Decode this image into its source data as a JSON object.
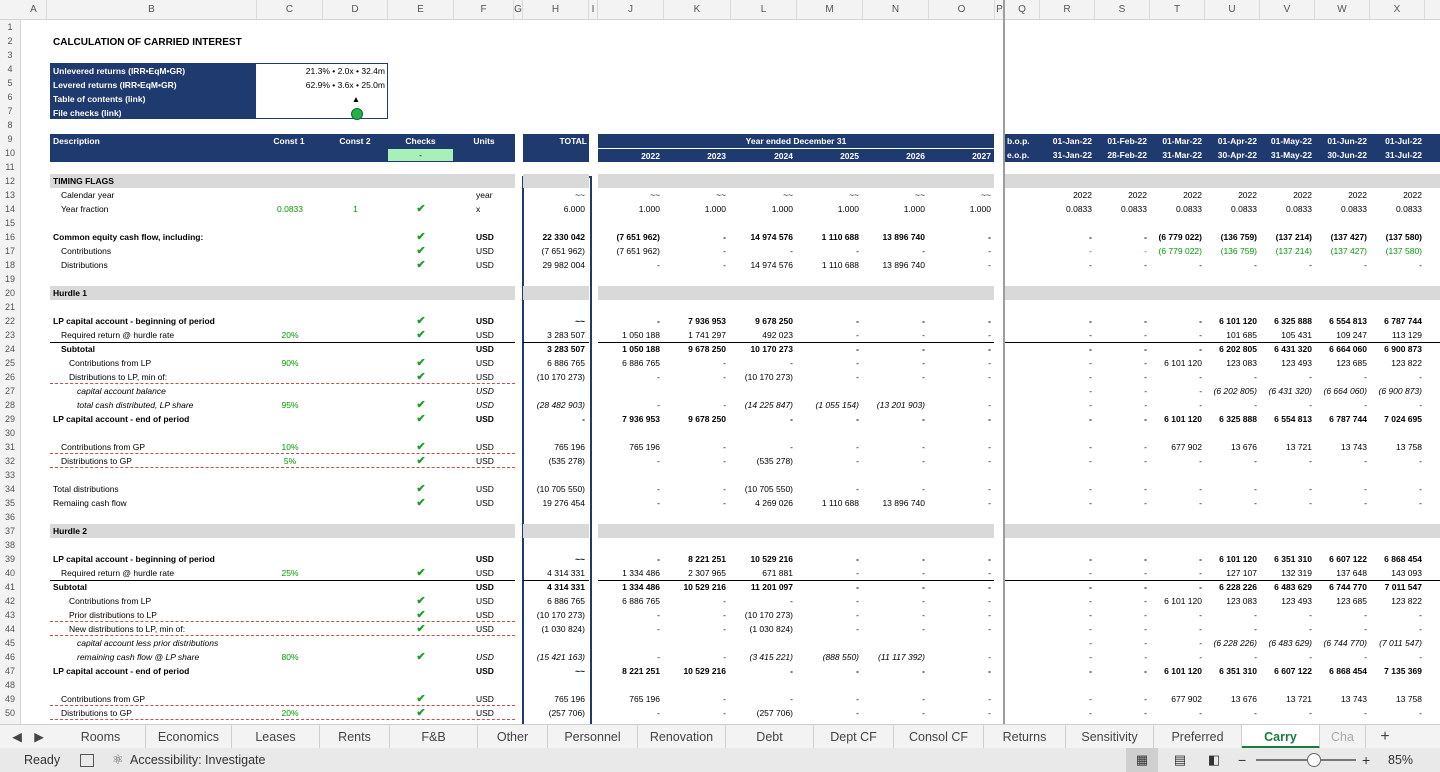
{
  "columns": [
    "A",
    "B",
    "C",
    "D",
    "E",
    "F",
    "G",
    "H",
    "I",
    "J",
    "K",
    "L",
    "M",
    "N",
    "O",
    "P",
    "Q",
    "R",
    "S",
    "T",
    "U",
    "V",
    "W",
    "X"
  ],
  "rows": [
    "1",
    "2",
    "3",
    "4",
    "5",
    "6",
    "7",
    "8",
    "9",
    "10",
    "11",
    "12",
    "13",
    "14",
    "15",
    "16",
    "17",
    "18",
    "19",
    "20",
    "21",
    "22",
    "23",
    "24",
    "25",
    "26",
    "27",
    "28",
    "29",
    "30",
    "31",
    "32",
    "33",
    "34",
    "35",
    "36",
    "37",
    "38",
    "39",
    "40",
    "41",
    "42",
    "43",
    "44",
    "45",
    "46",
    "47",
    "48",
    "49",
    "50"
  ],
  "title": "CALCULATION OF CARRIED INTEREST",
  "infobox": {
    "r1": "Unlevered returns (IRR•EqM•GR)",
    "v1": "21.3% • 2.0x • 32.4m",
    "r2": "Levered returns (IRR•EqM•GR)",
    "v2": "62.9% • 3.6x • 25.0m",
    "r3": "Table of contents (link)",
    "v3": "▲",
    "r4": "File checks (link)"
  },
  "header": {
    "description": "Description",
    "const1": "Const 1",
    "const2": "Const 2",
    "checks": "Checks",
    "checks_val": "-",
    "units": "Units",
    "total": "TOTAL",
    "year_ended": "Year ended December 31",
    "years": [
      "2022",
      "2023",
      "2024",
      "2025",
      "2026",
      "2027"
    ],
    "bop": "b.o.p.",
    "eop": "e.o.p.",
    "bop_dates": [
      "01-Jan-22",
      "01-Feb-22",
      "01-Mar-22",
      "01-Apr-22",
      "01-May-22",
      "01-Jun-22",
      "01-Jul-22"
    ],
    "eop_dates": [
      "31-Jan-22",
      "28-Feb-22",
      "31-Mar-22",
      "30-Apr-22",
      "31-May-22",
      "30-Jun-22",
      "31-Jul-22"
    ]
  },
  "sheet_rows": [
    {
      "r": 12,
      "grey": true,
      "label": "TIMING FLAGS",
      "bold": true
    },
    {
      "r": 13,
      "label": "Calendar year",
      "indent": 1,
      "unit": "year",
      "total": "~~",
      "ann": [
        "~~",
        "~~",
        "~~",
        "~~",
        "~~",
        "~~"
      ],
      "mon": [
        "2022",
        "2022",
        "2022",
        "2022",
        "2022",
        "2022",
        "2022"
      ]
    },
    {
      "r": 14,
      "label": "Year fraction",
      "indent": 1,
      "c1": "0.0833",
      "c2": "1",
      "chk": true,
      "unit": "x",
      "total": "6.000",
      "ann": [
        "1.000",
        "1.000",
        "1.000",
        "1.000",
        "1.000",
        "1.000"
      ],
      "mon": [
        "0.0833",
        "0.0833",
        "0.0833",
        "0.0833",
        "0.0833",
        "0.0833",
        "0.0833"
      ]
    },
    {
      "r": 16,
      "label": "Common equity cash flow, including:",
      "bold": true,
      "chk": true,
      "unit": "USD",
      "total": "22 330 042",
      "ann": [
        "(7 651 962)",
        "-",
        "14 974 576",
        "1 110 688",
        "13 896 740",
        "-"
      ],
      "mon": [
        "-",
        "-",
        "(6 779 022)",
        "(136 759)",
        "(137 214)",
        "(137 427)",
        "(137 580)"
      ]
    },
    {
      "r": 17,
      "label": "Contributions",
      "indent": 1,
      "chk": true,
      "unit": "USD",
      "total": "(7 651 962)",
      "ann": [
        "(7 651 962)",
        "-",
        "-",
        "-",
        "-",
        "-"
      ],
      "mon": [
        "-",
        "-",
        "(6 779 022)",
        "(136 759)",
        "(137 214)",
        "(137 427)",
        "(137 580)"
      ],
      "green_mon": true
    },
    {
      "r": 18,
      "label": "Distributions",
      "indent": 1,
      "chk": true,
      "unit": "USD",
      "total": "29 982 004",
      "ann": [
        "-",
        "-",
        "14 974 576",
        "1 110 688",
        "13 896 740",
        "-"
      ],
      "mon": [
        "-",
        "-",
        "-",
        "-",
        "-",
        "-",
        "-"
      ]
    },
    {
      "r": 20,
      "grey": true,
      "label": "Hurdle 1",
      "bold": true
    },
    {
      "r": 22,
      "label": "LP capital account - beginning of period",
      "bold": true,
      "chk": true,
      "unit": "USD",
      "total": "~~",
      "ann": [
        "-",
        "7 936 953",
        "9 678 250",
        "-",
        "-",
        "-"
      ],
      "mon": [
        "-",
        "-",
        "-",
        "6 101 120",
        "6 325 888",
        "6 554 813",
        "6 787 744"
      ]
    },
    {
      "r": 23,
      "label": "Required return @ hurdle rate",
      "indent": 1,
      "c1": "20%",
      "chk": true,
      "unit": "USD",
      "total": "3 283 507",
      "ann": [
        "1 050 188",
        "1 741 297",
        "492 023",
        "-",
        "-",
        "-"
      ],
      "mon": [
        "-",
        "-",
        "-",
        "101 685",
        "105 431",
        "109 247",
        "113 129"
      ]
    },
    {
      "r": 24,
      "label": "Subtotal",
      "bold": true,
      "indent": 1,
      "unit": "USD",
      "total": "3 283 507",
      "ann": [
        "1 050 188",
        "9 678 250",
        "10 170 273",
        "-",
        "-",
        "-"
      ],
      "mon": [
        "-",
        "-",
        "-",
        "6 202 805",
        "6 431 320",
        "6 664 060",
        "6 900 873"
      ]
    },
    {
      "r": 25,
      "label": "Contributions from LP",
      "indent": 2,
      "c1": "90%",
      "chk": true,
      "unit": "USD",
      "total": "6 886 765",
      "ann": [
        "6 886 765",
        "-",
        "-",
        "-",
        "-",
        "-"
      ],
      "mon": [
        "-",
        "-",
        "6 101 120",
        "123 083",
        "123 493",
        "123 685",
        "123 822"
      ]
    },
    {
      "r": 26,
      "label": "Distributions to LP, min of:",
      "indent": 2,
      "chk": true,
      "unit": "USD",
      "total": "(10 170 273)",
      "ann": [
        "-",
        "-",
        "(10 170 273)",
        "-",
        "-",
        "-"
      ],
      "mon": [
        "-",
        "-",
        "-",
        "-",
        "-",
        "-",
        "-"
      ]
    },
    {
      "r": 27,
      "label": "capital account balance",
      "italic": true,
      "indent": 3,
      "unit": "USD",
      "ann": [],
      "mon": [
        "-",
        "-",
        "-",
        "(6 202 805)",
        "(6 431 320)",
        "(6 664 060)",
        "(6 900 873)"
      ]
    },
    {
      "r": 28,
      "label": "total cash distributed, LP share",
      "italic": true,
      "indent": 3,
      "c1": "95%",
      "chk": true,
      "unit": "USD",
      "total": "(28 482 903)",
      "ann": [
        "-",
        "-",
        "(14 225 847)",
        "(1 055 154)",
        "(13 201 903)",
        "-"
      ],
      "mon": [
        "-",
        "-",
        "-",
        "-",
        "-",
        "-",
        "-"
      ]
    },
    {
      "r": 29,
      "label": "LP capital account - end of period",
      "bold": true,
      "chk": true,
      "unit": "USD",
      "total": "-",
      "ann": [
        "7 936 953",
        "9 678 250",
        "-",
        "-",
        "-",
        "-"
      ],
      "mon": [
        "-",
        "-",
        "6 101 120",
        "6 325 888",
        "6 554 813",
        "6 787 744",
        "7 024 695"
      ]
    },
    {
      "r": 31,
      "label": "Contributions from GP",
      "indent": 1,
      "c1": "10%",
      "chk": true,
      "unit": "USD",
      "total": "765 196",
      "ann": [
        "765 196",
        "-",
        "-",
        "-",
        "-",
        "-"
      ],
      "mon": [
        "-",
        "-",
        "677 902",
        "13 676",
        "13 721",
        "13 743",
        "13 758"
      ]
    },
    {
      "r": 32,
      "label": "Distributions to GP",
      "indent": 1,
      "c1": "5%",
      "chk": true,
      "unit": "USD",
      "total": "(535 278)",
      "ann": [
        "-",
        "-",
        "(535 278)",
        "-",
        "-",
        "-"
      ],
      "mon": [
        "-",
        "-",
        "-",
        "-",
        "-",
        "-",
        "-"
      ]
    },
    {
      "r": 34,
      "label": "Total distributions",
      "chk": true,
      "unit": "USD",
      "total": "(10 705 550)",
      "ann": [
        "-",
        "-",
        "(10 705 550)",
        "-",
        "-",
        "-"
      ],
      "mon": [
        "-",
        "-",
        "-",
        "-",
        "-",
        "-",
        "-"
      ]
    },
    {
      "r": 35,
      "label": "Remaiing cash flow",
      "chk": true,
      "unit": "USD",
      "total": "19 276 454",
      "ann": [
        "-",
        "-",
        "4 269 026",
        "1 110 688",
        "13 896 740",
        "-"
      ],
      "mon": [
        "-",
        "-",
        "-",
        "-",
        "-",
        "-",
        "-"
      ]
    },
    {
      "r": 37,
      "grey": true,
      "label": "Hurdle 2",
      "bold": true
    },
    {
      "r": 39,
      "label": "LP capital account - beginning of period",
      "bold": true,
      "unit": "USD",
      "total": "~~",
      "ann": [
        "-",
        "8 221 251",
        "10 529 216",
        "-",
        "-",
        "-"
      ],
      "mon": [
        "-",
        "-",
        "-",
        "6 101 120",
        "6 351 310",
        "6 607 122",
        "6 868 454"
      ]
    },
    {
      "r": 40,
      "label": "Required return @ hurdle rate",
      "indent": 1,
      "c1": "25%",
      "chk": true,
      "unit": "USD",
      "total": "4 314 331",
      "ann": [
        "1 334 486",
        "2 307 965",
        "671 881",
        "-",
        "-",
        "-"
      ],
      "mon": [
        "-",
        "-",
        "-",
        "127 107",
        "132 319",
        "137 648",
        "143 093"
      ]
    },
    {
      "r": 41,
      "label": "Subtotal",
      "bold": true,
      "unit": "USD",
      "total": "4 314 331",
      "ann": [
        "1 334 486",
        "10 529 216",
        "11 201 097",
        "-",
        "-",
        "-"
      ],
      "mon": [
        "-",
        "-",
        "-",
        "6 228 226",
        "6 483 629",
        "6 744 770",
        "7 011 547"
      ]
    },
    {
      "r": 42,
      "label": "Contributions from LP",
      "indent": 2,
      "chk": true,
      "unit": "USD",
      "total": "6 886 765",
      "ann": [
        "6 886 765",
        "-",
        "-",
        "-",
        "-",
        "-"
      ],
      "mon": [
        "-",
        "-",
        "6 101 120",
        "123 083",
        "123 493",
        "123 685",
        "123 822"
      ]
    },
    {
      "r": 43,
      "label": "Prior distributions to LP",
      "indent": 2,
      "chk": true,
      "unit": "USD",
      "total": "(10 170 273)",
      "ann": [
        "-",
        "-",
        "(10 170 273)",
        "-",
        "-",
        "-"
      ],
      "mon": [
        "-",
        "-",
        "-",
        "-",
        "-",
        "-",
        "-"
      ]
    },
    {
      "r": 44,
      "label": "New distributions to LP, min of:",
      "indent": 2,
      "chk": true,
      "unit": "USD",
      "total": "(1 030 824)",
      "ann": [
        "-",
        "-",
        "(1 030 824)",
        "-",
        "-",
        "-"
      ],
      "mon": [
        "-",
        "-",
        "-",
        "-",
        "-",
        "-",
        "-"
      ]
    },
    {
      "r": 45,
      "label": "capital account less prior distributions",
      "italic": true,
      "indent": 3,
      "ann": [],
      "mon": [
        "-",
        "-",
        "-",
        "(6 228 226)",
        "(6 483 629)",
        "(6 744 770)",
        "(7 011 547)"
      ]
    },
    {
      "r": 46,
      "label": "remaining cash flow @ LP share",
      "italic": true,
      "indent": 3,
      "c1": "80%",
      "chk": true,
      "unit": "USD",
      "total": "(15 421 163)",
      "ann": [
        "-",
        "-",
        "(3 415 221)",
        "(888 550)",
        "(11 117 392)",
        "-"
      ],
      "mon": [
        "-",
        "-",
        "-",
        "-",
        "-",
        "-",
        "-"
      ]
    },
    {
      "r": 47,
      "label": "LP capital account - end of period",
      "bold": true,
      "unit": "USD",
      "total": "~~",
      "ann": [
        "8 221 251",
        "10 529 216",
        "-",
        "-",
        "-",
        "-"
      ],
      "mon": [
        "-",
        "-",
        "6 101 120",
        "6 351 310",
        "6 607 122",
        "6 868 454",
        "7 135 369"
      ]
    },
    {
      "r": 49,
      "label": "Contributions from GP",
      "indent": 1,
      "chk": true,
      "unit": "USD",
      "total": "765 196",
      "ann": [
        "765 196",
        "-",
        "-",
        "-",
        "-",
        "-"
      ],
      "mon": [
        "-",
        "-",
        "677 902",
        "13 676",
        "13 721",
        "13 743",
        "13 758"
      ]
    },
    {
      "r": 50,
      "label": "Distributions to GP",
      "indent": 1,
      "c1": "20%",
      "chk": true,
      "unit": "USD",
      "total": "(257 706)",
      "ann": [
        "-",
        "-",
        "(257 706)",
        "-",
        "-",
        "-"
      ],
      "mon": [
        "-",
        "-",
        "-",
        "-",
        "-",
        "-",
        "-"
      ]
    }
  ],
  "tabs": [
    "Rooms",
    "Economics",
    "Leases",
    "Rents",
    "F&B",
    "Other",
    "Personnel",
    "Renovation",
    "Debt",
    "Dept CF",
    "Consol CF",
    "Returns",
    "Sensitivity",
    "Preferred",
    "Carry",
    "Cha"
  ],
  "active_tab": "Carry",
  "add_sheet": "+",
  "status": {
    "ready": "Ready",
    "accessibility": "Accessibility: Investigate",
    "zoom": "85%",
    "zoom_fraction": 0.57
  }
}
